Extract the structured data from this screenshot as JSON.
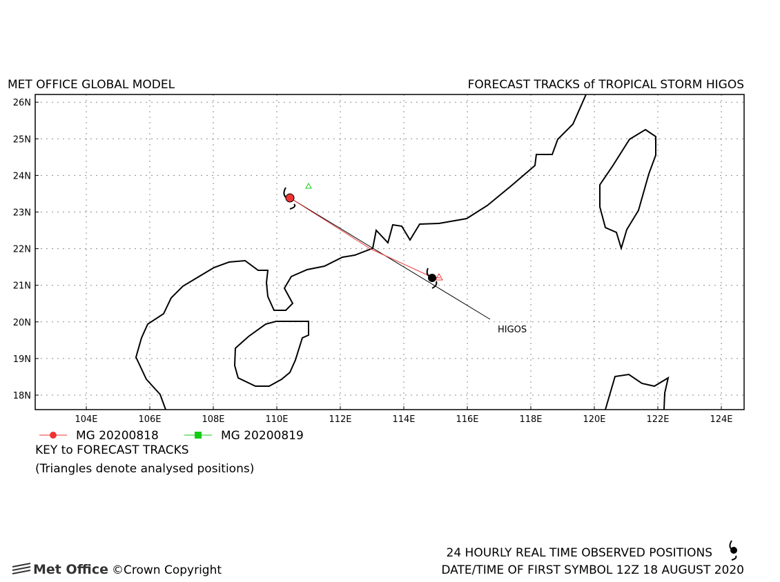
{
  "header": {
    "left": "MET OFFICE GLOBAL MODEL",
    "right": "FORECAST TRACKS of TROPICAL STORM HIGOS"
  },
  "map": {
    "lat_labels": [
      "18N",
      "19N",
      "20N",
      "21N",
      "22N",
      "23N",
      "24N",
      "25N",
      "26N"
    ],
    "lon_labels": [
      "104E",
      "106E",
      "108E",
      "110E",
      "112E",
      "114E",
      "116E",
      "118E",
      "120E",
      "122E",
      "124E"
    ],
    "storm_label": "HIGOS"
  },
  "legend": {
    "items": [
      "MG 20200818",
      "MG 20200819"
    ]
  },
  "key": {
    "title": "KEY to FORECAST TRACKS",
    "note": "(Triangles denote analysed positions)"
  },
  "footer": {
    "logo": "Met Office",
    "copyright": "©Crown Copyright",
    "line1": "24 HOURLY REAL TIME OBSERVED POSITIONS",
    "line2": "DATE/TIME OF FIRST SYMBOL 12Z 18 AUGUST 2020"
  }
}
